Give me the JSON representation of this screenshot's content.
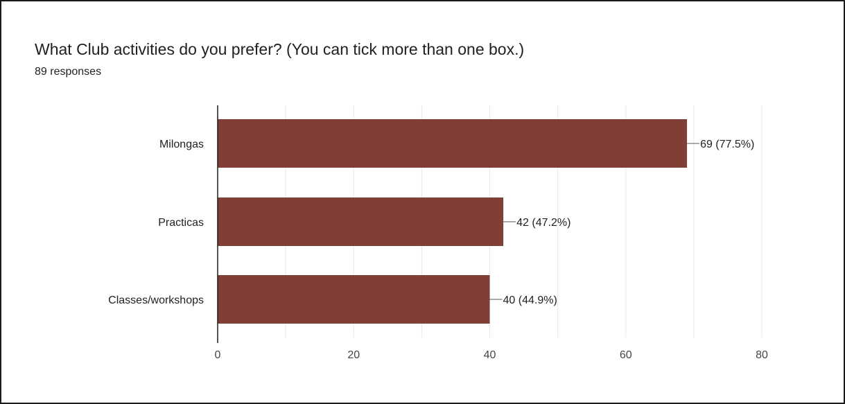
{
  "header": {
    "title": "What Club activities do you prefer? (You can tick more than one box.)",
    "responses": "89 responses"
  },
  "colors": {
    "bar": "#7f3f36",
    "grid": "#e8e8e8",
    "axis": "#1a1a1a",
    "leader": "#555555"
  },
  "chart_data": {
    "type": "bar",
    "orientation": "horizontal",
    "title": "What Club activities do you prefer? (You can tick more than one box.)",
    "subtitle": "89 responses",
    "categories": [
      "Milongas",
      "Practicas",
      "Classes/workshops"
    ],
    "values": [
      69,
      42,
      40
    ],
    "data_labels": [
      "69 (77.5%)",
      "42 (47.2%)",
      "40 (44.9%)"
    ],
    "xlim": [
      0,
      80
    ],
    "xticks": [
      0,
      20,
      40,
      60,
      80
    ],
    "xlabel": "",
    "ylabel": "",
    "grid": true,
    "legend": "none"
  }
}
